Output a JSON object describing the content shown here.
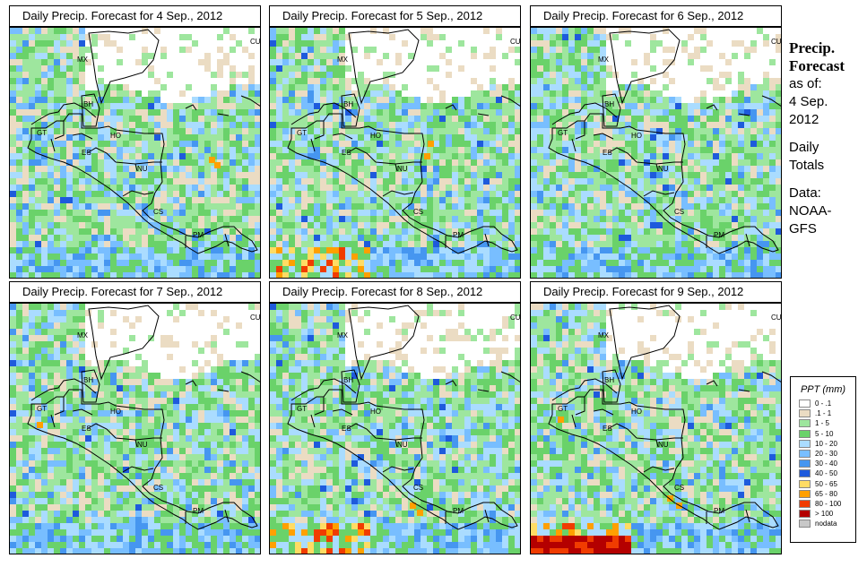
{
  "panels": [
    {
      "title": "Daily Precip. Forecast for  4 Sep., 2012"
    },
    {
      "title": "Daily Precip. Forecast for  5 Sep., 2012"
    },
    {
      "title": "Daily Precip. Forecast for  6 Sep., 2012"
    },
    {
      "title": "Daily Precip. Forecast for  7 Sep., 2012"
    },
    {
      "title": "Daily Precip. Forecast for  8 Sep., 2012"
    },
    {
      "title": "Daily Precip. Forecast for  9 Sep., 2012"
    }
  ],
  "country_labels": [
    "CU",
    "MX",
    "BH",
    "GT",
    "HO",
    "ES",
    "NU",
    "CS",
    "PM"
  ],
  "sidebar": {
    "heading_line1": "Precip.",
    "heading_line2": "Forecast",
    "asof_line1": "as of:",
    "asof_line2": "4 Sep.",
    "asof_line3": "2012",
    "totals_line1": "Daily",
    "totals_line2": "Totals",
    "data_line1": "Data:",
    "data_line2": "NOAA-",
    "data_line3": "GFS"
  },
  "legend": {
    "title": "PPT (mm)",
    "items": [
      {
        "label": "0 - .1",
        "color": "#ffffff"
      },
      {
        "label": ".1 - 1",
        "color": "#ebdcc3"
      },
      {
        "label": "1 - 5",
        "color": "#9ee69e"
      },
      {
        "label": "5 - 10",
        "color": "#6ad26a"
      },
      {
        "label": "10 - 20",
        "color": "#aadcff"
      },
      {
        "label": "20 - 30",
        "color": "#78beff"
      },
      {
        "label": "30 - 40",
        "color": "#4696f0"
      },
      {
        "label": "40 - 50",
        "color": "#1e5adc"
      },
      {
        "label": "50 - 65",
        "color": "#ffdc64"
      },
      {
        "label": "65 - 80",
        "color": "#ffa000"
      },
      {
        "label": "80 - 100",
        "color": "#f03c00"
      },
      {
        "label": "> 100",
        "color": "#b40000"
      },
      {
        "label": "nodata",
        "color": "#c8c8c8"
      }
    ]
  }
}
